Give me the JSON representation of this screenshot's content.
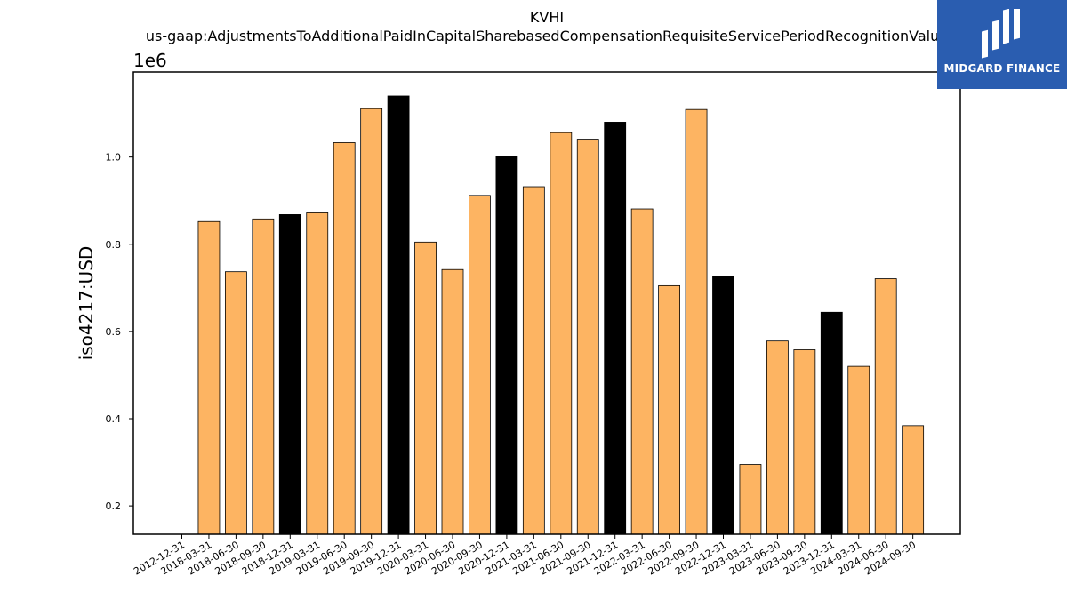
{
  "chart_data": {
    "type": "bar",
    "title": "KVHI",
    "subtitle": "us-gaap:AdjustmentsToAdditionalPaidInCapitalSharebasedCompensationRequisiteServicePeriodRecognitionValue",
    "ylabel": "iso4217:USD",
    "y_multiplier_label": "1e6",
    "ylim": [
      0.135,
      1.195
    ],
    "yticks": [
      0.2,
      0.4,
      0.6,
      0.8,
      1.0
    ],
    "ytick_labels": [
      "0.2",
      "0.4",
      "0.6",
      "0.8",
      "1.0"
    ],
    "categories": [
      "2012-12-31",
      "2018-03-31",
      "2018-06-30",
      "2018-09-30",
      "2018-12-31",
      "2019-03-31",
      "2019-06-30",
      "2019-09-30",
      "2019-12-31",
      "2020-03-31",
      "2020-06-30",
      "2020-09-30",
      "2020-12-31",
      "2021-03-31",
      "2021-06-30",
      "2021-09-30",
      "2021-12-31",
      "2022-03-31",
      "2022-06-30",
      "2022-09-30",
      "2022-12-31",
      "2023-03-31",
      "2023-06-30",
      "2023-09-30",
      "2023-12-31",
      "2024-03-31",
      "2024-06-30",
      "2024-09-30"
    ],
    "values": [
      null,
      0.852,
      0.737,
      0.858,
      0.868,
      0.872,
      1.033,
      1.111,
      1.14,
      0.805,
      0.742,
      0.912,
      1.002,
      0.932,
      1.056,
      1.041,
      1.08,
      0.881,
      0.705,
      1.109,
      0.727,
      0.295,
      0.578,
      0.558,
      0.644,
      0.52,
      0.721,
      0.384
    ],
    "highlight_quarter_end": "12-31",
    "colors": {
      "bar": "#fdb462",
      "highlight": "#000000",
      "edge": "#000000"
    },
    "grid": false,
    "legend": "none"
  },
  "logo": {
    "text": "MIDGARD FINANCE"
  }
}
